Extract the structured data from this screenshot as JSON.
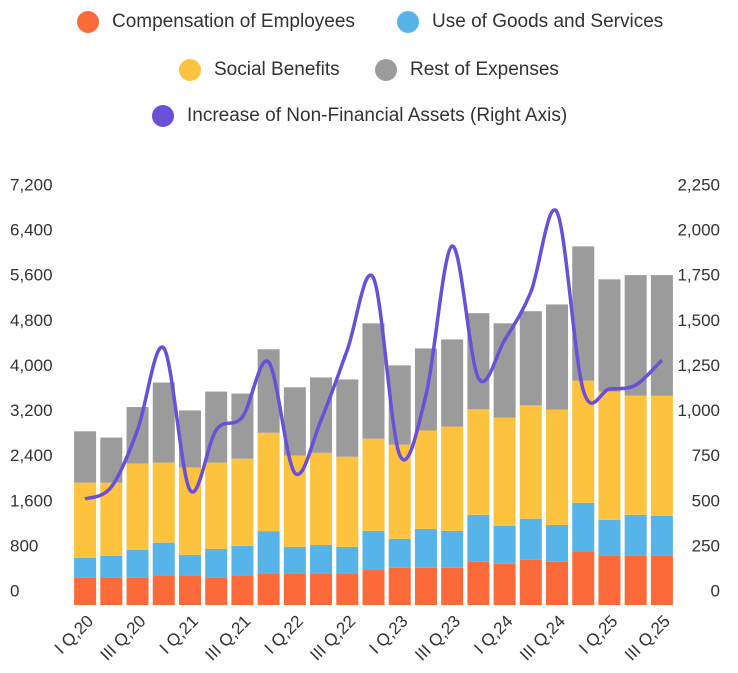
{
  "chart_data": {
    "type": "bar",
    "stacked": true,
    "categories": [
      "I Q,20",
      null,
      "III Q,20",
      null,
      "I Q,21",
      null,
      "III Q,21",
      null,
      "I Q,22",
      null,
      "III Q,22",
      null,
      "I Q,23",
      null,
      "III Q,23",
      null,
      "I Q,24",
      null,
      "III Q,24",
      null,
      "I Q,25",
      null,
      "III Q,25"
    ],
    "series": [
      {
        "name": "Compensation of Employees",
        "color": "#fd6a3a",
        "type": "bar",
        "values": [
          480,
          480,
          480,
          515,
          515,
          480,
          515,
          550,
          550,
          550,
          550,
          620,
          660,
          660,
          660,
          765,
          730,
          800,
          765,
          940,
          870,
          870,
          870
        ]
      },
      {
        "name": "Use of Goods and Services",
        "color": "#56b4e9",
        "type": "bar",
        "values": [
          355,
          390,
          500,
          590,
          375,
          515,
          535,
          760,
          480,
          515,
          480,
          695,
          515,
          690,
          655,
          835,
          675,
          730,
          655,
          870,
          640,
          730,
          710
        ]
      },
      {
        "name": "Social Benefits",
        "color": "#fdc23e",
        "type": "bar",
        "values": [
          1335,
          1300,
          1530,
          1420,
          1550,
          1530,
          1545,
          1745,
          1620,
          1635,
          1600,
          1635,
          1670,
          1745,
          1850,
          1870,
          1920,
          2010,
          2045,
          2170,
          2275,
          2115,
          2130
        ]
      },
      {
        "name": "Rest of Expenses",
        "color": "#9b9b9b",
        "type": "bar",
        "values": [
          910,
          800,
          1000,
          1420,
          1010,
          1260,
          1155,
          1480,
          1210,
          1335,
          1370,
          2045,
          1405,
          1455,
          1545,
          1705,
          1670,
          1670,
          1865,
          2380,
          1990,
          2135,
          2140
        ]
      },
      {
        "name": "Increase of Non-Financial Assets (Right Axis)",
        "color": "#6a4fd8",
        "type": "line",
        "axis": "y2",
        "values": [
          587,
          654,
          970,
          1424,
          637,
          970,
          1042,
          1346,
          731,
          1025,
          1413,
          1812,
          831,
          1163,
          1989,
          1258,
          1468,
          1734,
          2177,
          1191,
          1197,
          1219,
          1357
        ]
      }
    ],
    "ylim": [
      0,
      7200
    ],
    "yticks": [
      0,
      800,
      {
        "value": 1600,
        "label": "1,600"
      },
      {
        "value": 2400,
        "label": "2,400"
      },
      {
        "value": 3200,
        "label": "3,200"
      },
      {
        "value": 4000,
        "label": "4,000"
      },
      {
        "value": 4800,
        "label": "4,800"
      },
      {
        "value": 5600,
        "label": "5,600"
      },
      {
        "value": 6400,
        "label": "6,400"
      },
      {
        "value": 7200,
        "label": "7,200"
      }
    ],
    "y2lim": [
      0,
      2250
    ],
    "y2ticks": [
      0,
      250,
      500,
      750,
      {
        "value": 1000,
        "label": "1,000"
      },
      {
        "value": 1250,
        "label": "1,250"
      },
      {
        "value": 1500,
        "label": "1,500"
      },
      {
        "value": 1750,
        "label": "1,750"
      },
      {
        "value": 2000,
        "label": "2,000"
      },
      {
        "value": 2250,
        "label": "2,250"
      }
    ],
    "grid": false,
    "legend": "top"
  }
}
